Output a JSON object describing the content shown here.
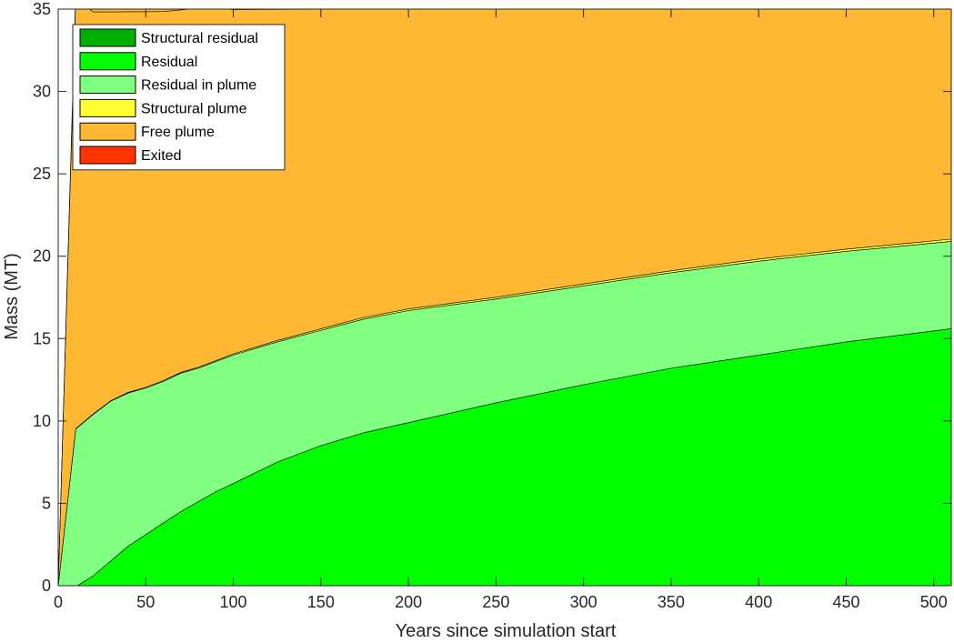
{
  "chart_data": {
    "type": "area",
    "stacked": true,
    "xlabel": "Years since simulation start",
    "ylabel": "Mass (MT)",
    "xlim": [
      0,
      510
    ],
    "ylim": [
      0,
      35
    ],
    "xticks": [
      "0",
      "50",
      "100",
      "150",
      "200",
      "250",
      "300",
      "350",
      "400",
      "450",
      "500"
    ],
    "yticks": [
      "0",
      "5",
      "10",
      "15",
      "20",
      "25",
      "30",
      "35"
    ],
    "grid": false,
    "legend_position": "top-left",
    "x": [
      0,
      10,
      11,
      20,
      30,
      40,
      50,
      60,
      70,
      80,
      90,
      100,
      125,
      150,
      175,
      200,
      250,
      300,
      350,
      400,
      450,
      510
    ],
    "series": [
      {
        "name": "Structural residual",
        "color": "#00b000",
        "values": [
          0,
          0,
          0,
          0,
          0,
          0,
          0,
          0,
          0,
          0,
          0,
          0,
          0,
          0,
          0,
          0,
          0,
          0,
          0,
          0,
          0,
          0
        ]
      },
      {
        "name": "Residual",
        "color": "#00ff00",
        "values": [
          0,
          0,
          0,
          0.6,
          1.5,
          2.4,
          3.1,
          3.8,
          4.5,
          5.1,
          5.7,
          6.2,
          7.5,
          8.5,
          9.3,
          9.9,
          11.1,
          12.2,
          13.2,
          14.0,
          14.8,
          15.6
        ]
      },
      {
        "name": "Residual in plume",
        "color": "#80ff80",
        "values": [
          0,
          9.5,
          9.6,
          9.8,
          9.7,
          9.3,
          8.9,
          8.6,
          8.4,
          8.1,
          7.9,
          7.8,
          7.3,
          7.0,
          6.9,
          6.8,
          6.3,
          6.0,
          5.8,
          5.7,
          5.5,
          5.3
        ]
      },
      {
        "name": "Structural plume",
        "color": "#ffff33",
        "values": [
          0,
          0.02,
          0.02,
          0.03,
          0.03,
          0.04,
          0.04,
          0.05,
          0.05,
          0.06,
          0.06,
          0.07,
          0.08,
          0.09,
          0.1,
          0.1,
          0.11,
          0.12,
          0.12,
          0.13,
          0.13,
          0.14
        ]
      },
      {
        "name": "Free plume",
        "color": "#ffb833",
        "values": [
          0,
          26.0,
          25.9,
          24.4,
          23.6,
          23.1,
          22.8,
          22.4,
          22.0,
          21.8,
          21.4,
          20.9,
          20.1,
          19.4,
          18.7,
          18.2,
          17.5,
          16.7,
          15.9,
          15.2,
          14.6,
          14.0
        ]
      },
      {
        "name": "Exited",
        "color": "#ff3300",
        "values": [
          0,
          0,
          0,
          0,
          0,
          0,
          0,
          0,
          0,
          0,
          0,
          0,
          0,
          0,
          0,
          0,
          0,
          0,
          0,
          0,
          0,
          0
        ]
      }
    ],
    "free_plume_peak": {
      "x": 10,
      "y": 36
    }
  }
}
